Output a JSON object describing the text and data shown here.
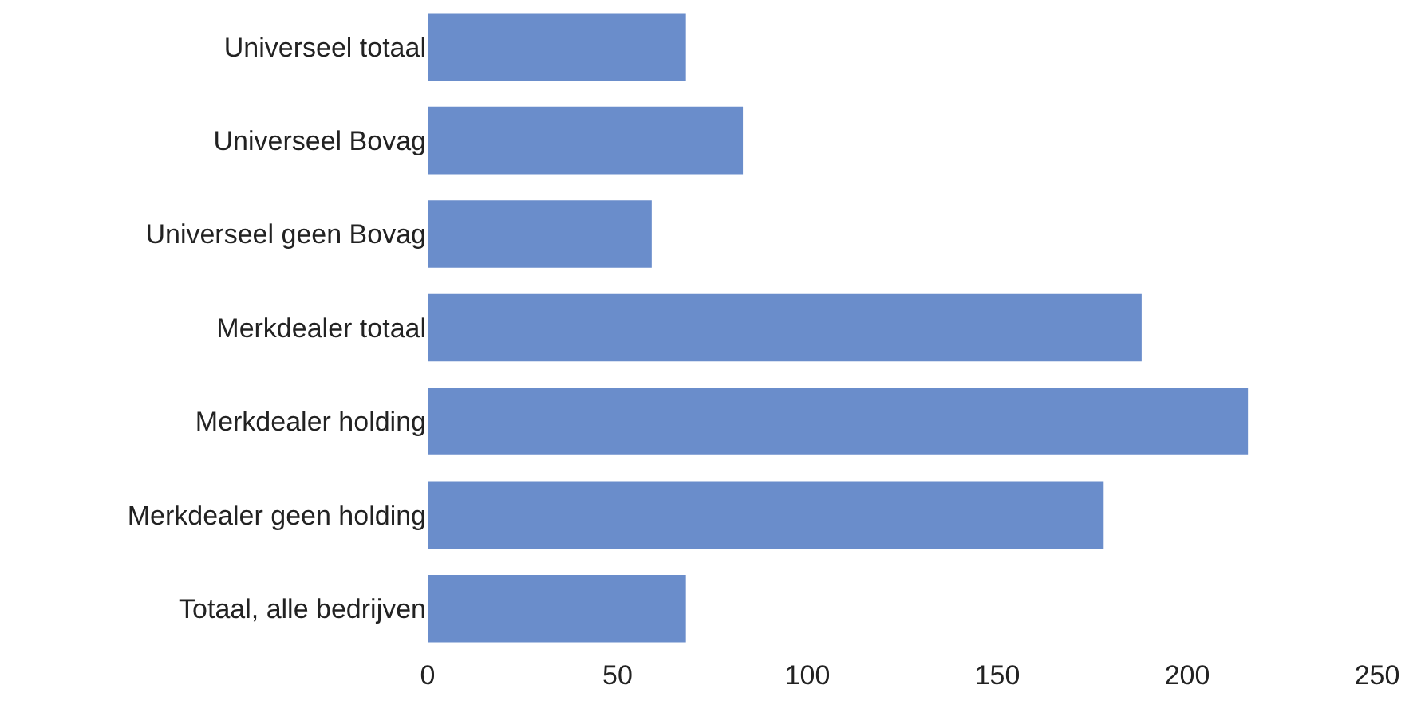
{
  "chart_data": {
    "type": "bar",
    "orientation": "horizontal",
    "categories": [
      "Universeel totaal",
      "Universeel Bovag",
      "Universeel geen Bovag",
      "Merkdealer totaal",
      "Merkdealer holding",
      "Merkdealer geen holding",
      "Totaal, alle bedrijven"
    ],
    "values": [
      68,
      83,
      59,
      188,
      216,
      178,
      68
    ],
    "color": "#6a8dcb",
    "xlim": [
      0,
      250
    ],
    "xticks": [
      0,
      50,
      100,
      150,
      200,
      250
    ],
    "grid": false
  }
}
